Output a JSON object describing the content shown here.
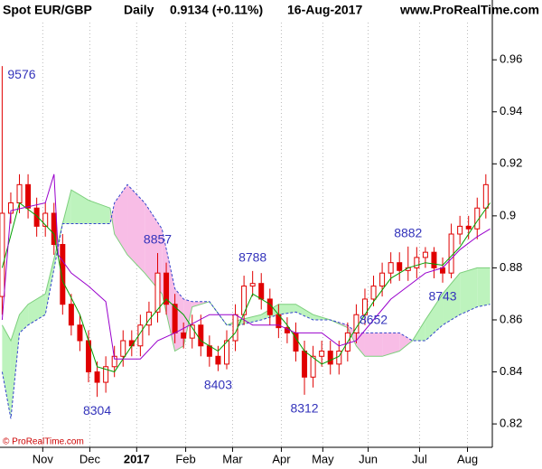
{
  "chart_data": {
    "type": "candlestick",
    "symbol": "Spot EUR/GBP",
    "period": "Daily",
    "last": "0.9134 (+0.11%)",
    "date": "16-Aug-2017",
    "site": "www.ProRealTime.com",
    "copyright": "© ProRealTime.com",
    "x": [
      0,
      4,
      8,
      12,
      16,
      20,
      24,
      28,
      32,
      36,
      40,
      44,
      48,
      52,
      56,
      60,
      64,
      68,
      72,
      76,
      80,
      84,
      88,
      92,
      96,
      100,
      104,
      108,
      112,
      116,
      120,
      124,
      128,
      132,
      136,
      140,
      144,
      148,
      152,
      156,
      160,
      164,
      168,
      172,
      176,
      180,
      184,
      188,
      192,
      196,
      200,
      204,
      208,
      212,
      216,
      220,
      224
    ],
    "open": [
      0.869,
      0.901,
      0.905,
      0.912,
      0.903,
      0.896,
      0.901,
      0.889,
      0.866,
      0.858,
      0.852,
      0.84,
      0.836,
      0.842,
      0.846,
      0.852,
      0.85,
      0.858,
      0.863,
      0.878,
      0.866,
      0.855,
      0.853,
      0.858,
      0.85,
      0.846,
      0.843,
      0.852,
      0.862,
      0.873,
      0.874,
      0.868,
      0.862,
      0.857,
      0.855,
      0.848,
      0.838,
      0.846,
      0.848,
      0.843,
      0.848,
      0.855,
      0.862,
      0.868,
      0.873,
      0.878,
      0.882,
      0.879,
      0.88,
      0.884,
      0.886,
      0.88,
      0.878,
      0.893,
      0.896,
      0.895,
      0.903
    ],
    "high": [
      0.9576,
      0.909,
      0.916,
      0.916,
      0.907,
      0.905,
      0.905,
      0.893,
      0.87,
      0.862,
      0.856,
      0.844,
      0.846,
      0.85,
      0.856,
      0.856,
      0.862,
      0.867,
      0.8857,
      0.882,
      0.87,
      0.859,
      0.862,
      0.862,
      0.854,
      0.85,
      0.856,
      0.866,
      0.877,
      0.8788,
      0.878,
      0.872,
      0.866,
      0.861,
      0.859,
      0.852,
      0.85,
      0.852,
      0.852,
      0.852,
      0.859,
      0.866,
      0.872,
      0.877,
      0.882,
      0.886,
      0.886,
      0.8882,
      0.888,
      0.888,
      0.888,
      0.884,
      0.897,
      0.9,
      0.9,
      0.907,
      0.916
    ],
    "low": [
      0.862,
      0.897,
      0.901,
      0.899,
      0.892,
      0.892,
      0.885,
      0.862,
      0.854,
      0.848,
      0.836,
      0.8304,
      0.832,
      0.838,
      0.842,
      0.846,
      0.846,
      0.854,
      0.859,
      0.862,
      0.851,
      0.849,
      0.849,
      0.846,
      0.842,
      0.8403,
      0.841,
      0.848,
      0.858,
      0.869,
      0.864,
      0.858,
      0.853,
      0.851,
      0.844,
      0.8312,
      0.834,
      0.842,
      0.839,
      0.839,
      0.844,
      0.851,
      0.858,
      0.8652,
      0.869,
      0.874,
      0.875,
      0.875,
      0.876,
      0.88,
      0.876,
      0.8743,
      0.876,
      0.889,
      0.891,
      0.891,
      0.899
    ],
    "close": [
      0.901,
      0.905,
      0.912,
      0.903,
      0.896,
      0.901,
      0.889,
      0.866,
      0.858,
      0.852,
      0.84,
      0.836,
      0.842,
      0.846,
      0.852,
      0.85,
      0.858,
      0.863,
      0.878,
      0.866,
      0.855,
      0.853,
      0.858,
      0.85,
      0.846,
      0.843,
      0.852,
      0.862,
      0.873,
      0.874,
      0.868,
      0.862,
      0.857,
      0.855,
      0.848,
      0.838,
      0.846,
      0.848,
      0.843,
      0.848,
      0.855,
      0.862,
      0.868,
      0.873,
      0.878,
      0.882,
      0.879,
      0.88,
      0.884,
      0.886,
      0.88,
      0.878,
      0.893,
      0.896,
      0.895,
      0.903,
      0.912
    ],
    "candle_color": "#e00000",
    "lines": [
      {
        "color": "#00a000",
        "x": [
          0,
          8,
          16,
          24,
          28,
          36,
          44,
          52,
          60,
          68,
          76,
          84,
          92,
          100,
          108,
          116,
          124,
          132,
          140,
          148,
          156,
          164,
          172,
          180,
          188,
          196,
          204,
          212,
          220,
          226
        ],
        "values": [
          0.88,
          0.905,
          0.9,
          0.893,
          0.875,
          0.862,
          0.842,
          0.84,
          0.85,
          0.86,
          0.868,
          0.862,
          0.852,
          0.848,
          0.855,
          0.87,
          0.866,
          0.858,
          0.848,
          0.843,
          0.846,
          0.857,
          0.867,
          0.876,
          0.88,
          0.882,
          0.881,
          0.888,
          0.898,
          0.905
        ]
      },
      {
        "color": "#9900cc",
        "x": [
          0,
          4,
          20,
          24,
          26,
          32,
          40,
          48,
          52,
          64,
          72,
          80,
          96,
          108,
          116,
          128,
          136,
          148,
          156,
          164,
          172,
          180,
          188,
          196,
          204,
          212,
          220,
          226
        ],
        "values": [
          0.86,
          0.902,
          0.905,
          0.916,
          0.885,
          0.878,
          0.873,
          0.867,
          0.845,
          0.845,
          0.852,
          0.855,
          0.862,
          0.862,
          0.858,
          0.858,
          0.855,
          0.855,
          0.85,
          0.852,
          0.86,
          0.868,
          0.873,
          0.878,
          0.88,
          0.887,
          0.892,
          0.895
        ]
      }
    ],
    "cloud": {
      "x": [
        0,
        4,
        8,
        12,
        20,
        28,
        32,
        40,
        50,
        52,
        58,
        66,
        74,
        80,
        84,
        88,
        96,
        104,
        110,
        120,
        128,
        136,
        144,
        152,
        160,
        164,
        168,
        176,
        184,
        190,
        196,
        204,
        212,
        220,
        226
      ],
      "span_a": [
        0.858,
        0.852,
        0.862,
        0.866,
        0.87,
        0.897,
        0.91,
        0.906,
        0.903,
        0.893,
        0.885,
        0.878,
        0.87,
        0.848,
        0.85,
        0.865,
        0.867,
        0.858,
        0.86,
        0.862,
        0.866,
        0.866,
        0.862,
        0.86,
        0.857,
        0.85,
        0.846,
        0.846,
        0.848,
        0.852,
        0.86,
        0.87,
        0.878,
        0.88,
        0.88
      ],
      "span_b": [
        0.84,
        0.822,
        0.855,
        0.858,
        0.862,
        0.897,
        0.897,
        0.897,
        0.897,
        0.905,
        0.912,
        0.905,
        0.895,
        0.872,
        0.868,
        0.867,
        0.867,
        0.858,
        0.858,
        0.86,
        0.862,
        0.863,
        0.86,
        0.86,
        0.858,
        0.855,
        0.855,
        0.855,
        0.855,
        0.852,
        0.852,
        0.858,
        0.862,
        0.865,
        0.866
      ],
      "line_a_color": "#7ccf7c",
      "line_b_color": "#3344cc",
      "up_color": "#bdf3bd",
      "down_color": "#f8bde6"
    },
    "annotations": [
      {
        "label": "9576",
        "x": 0,
        "y": 0.9576
      },
      {
        "label": "8304",
        "x": 44,
        "y": 0.8304
      },
      {
        "label": "8857",
        "x": 72,
        "y": 0.8857
      },
      {
        "label": "8403",
        "x": 100,
        "y": 0.8403
      },
      {
        "label": "8788",
        "x": 116,
        "y": 0.8788
      },
      {
        "label": "8312",
        "x": 140,
        "y": 0.8312
      },
      {
        "label": "8652",
        "x": 172,
        "y": 0.8652
      },
      {
        "label": "8882",
        "x": 188,
        "y": 0.8882
      },
      {
        "label": "8743",
        "x": 204,
        "y": 0.8743
      }
    ],
    "xlim": [
      -1,
      227
    ],
    "ylim": [
      0.811,
      0.983
    ],
    "yticks": [
      0.82,
      0.84,
      0.86,
      0.88,
      0.9,
      0.92,
      0.94,
      0.96
    ],
    "xticks": [
      {
        "value": 18.8,
        "label": "Nov"
      },
      {
        "value": 40.6,
        "label": "Dec"
      },
      {
        "value": 62.3,
        "label": "2017"
      },
      {
        "value": 85,
        "label": "Feb"
      },
      {
        "value": 106.7,
        "label": "Mar"
      },
      {
        "value": 129.3,
        "label": "Apr"
      },
      {
        "value": 148.5,
        "label": "May"
      },
      {
        "value": 169.5,
        "label": "Jun"
      },
      {
        "value": 193.3,
        "label": "Jul"
      },
      {
        "value": 215.5,
        "label": "Aug"
      }
    ],
    "grid": true
  }
}
